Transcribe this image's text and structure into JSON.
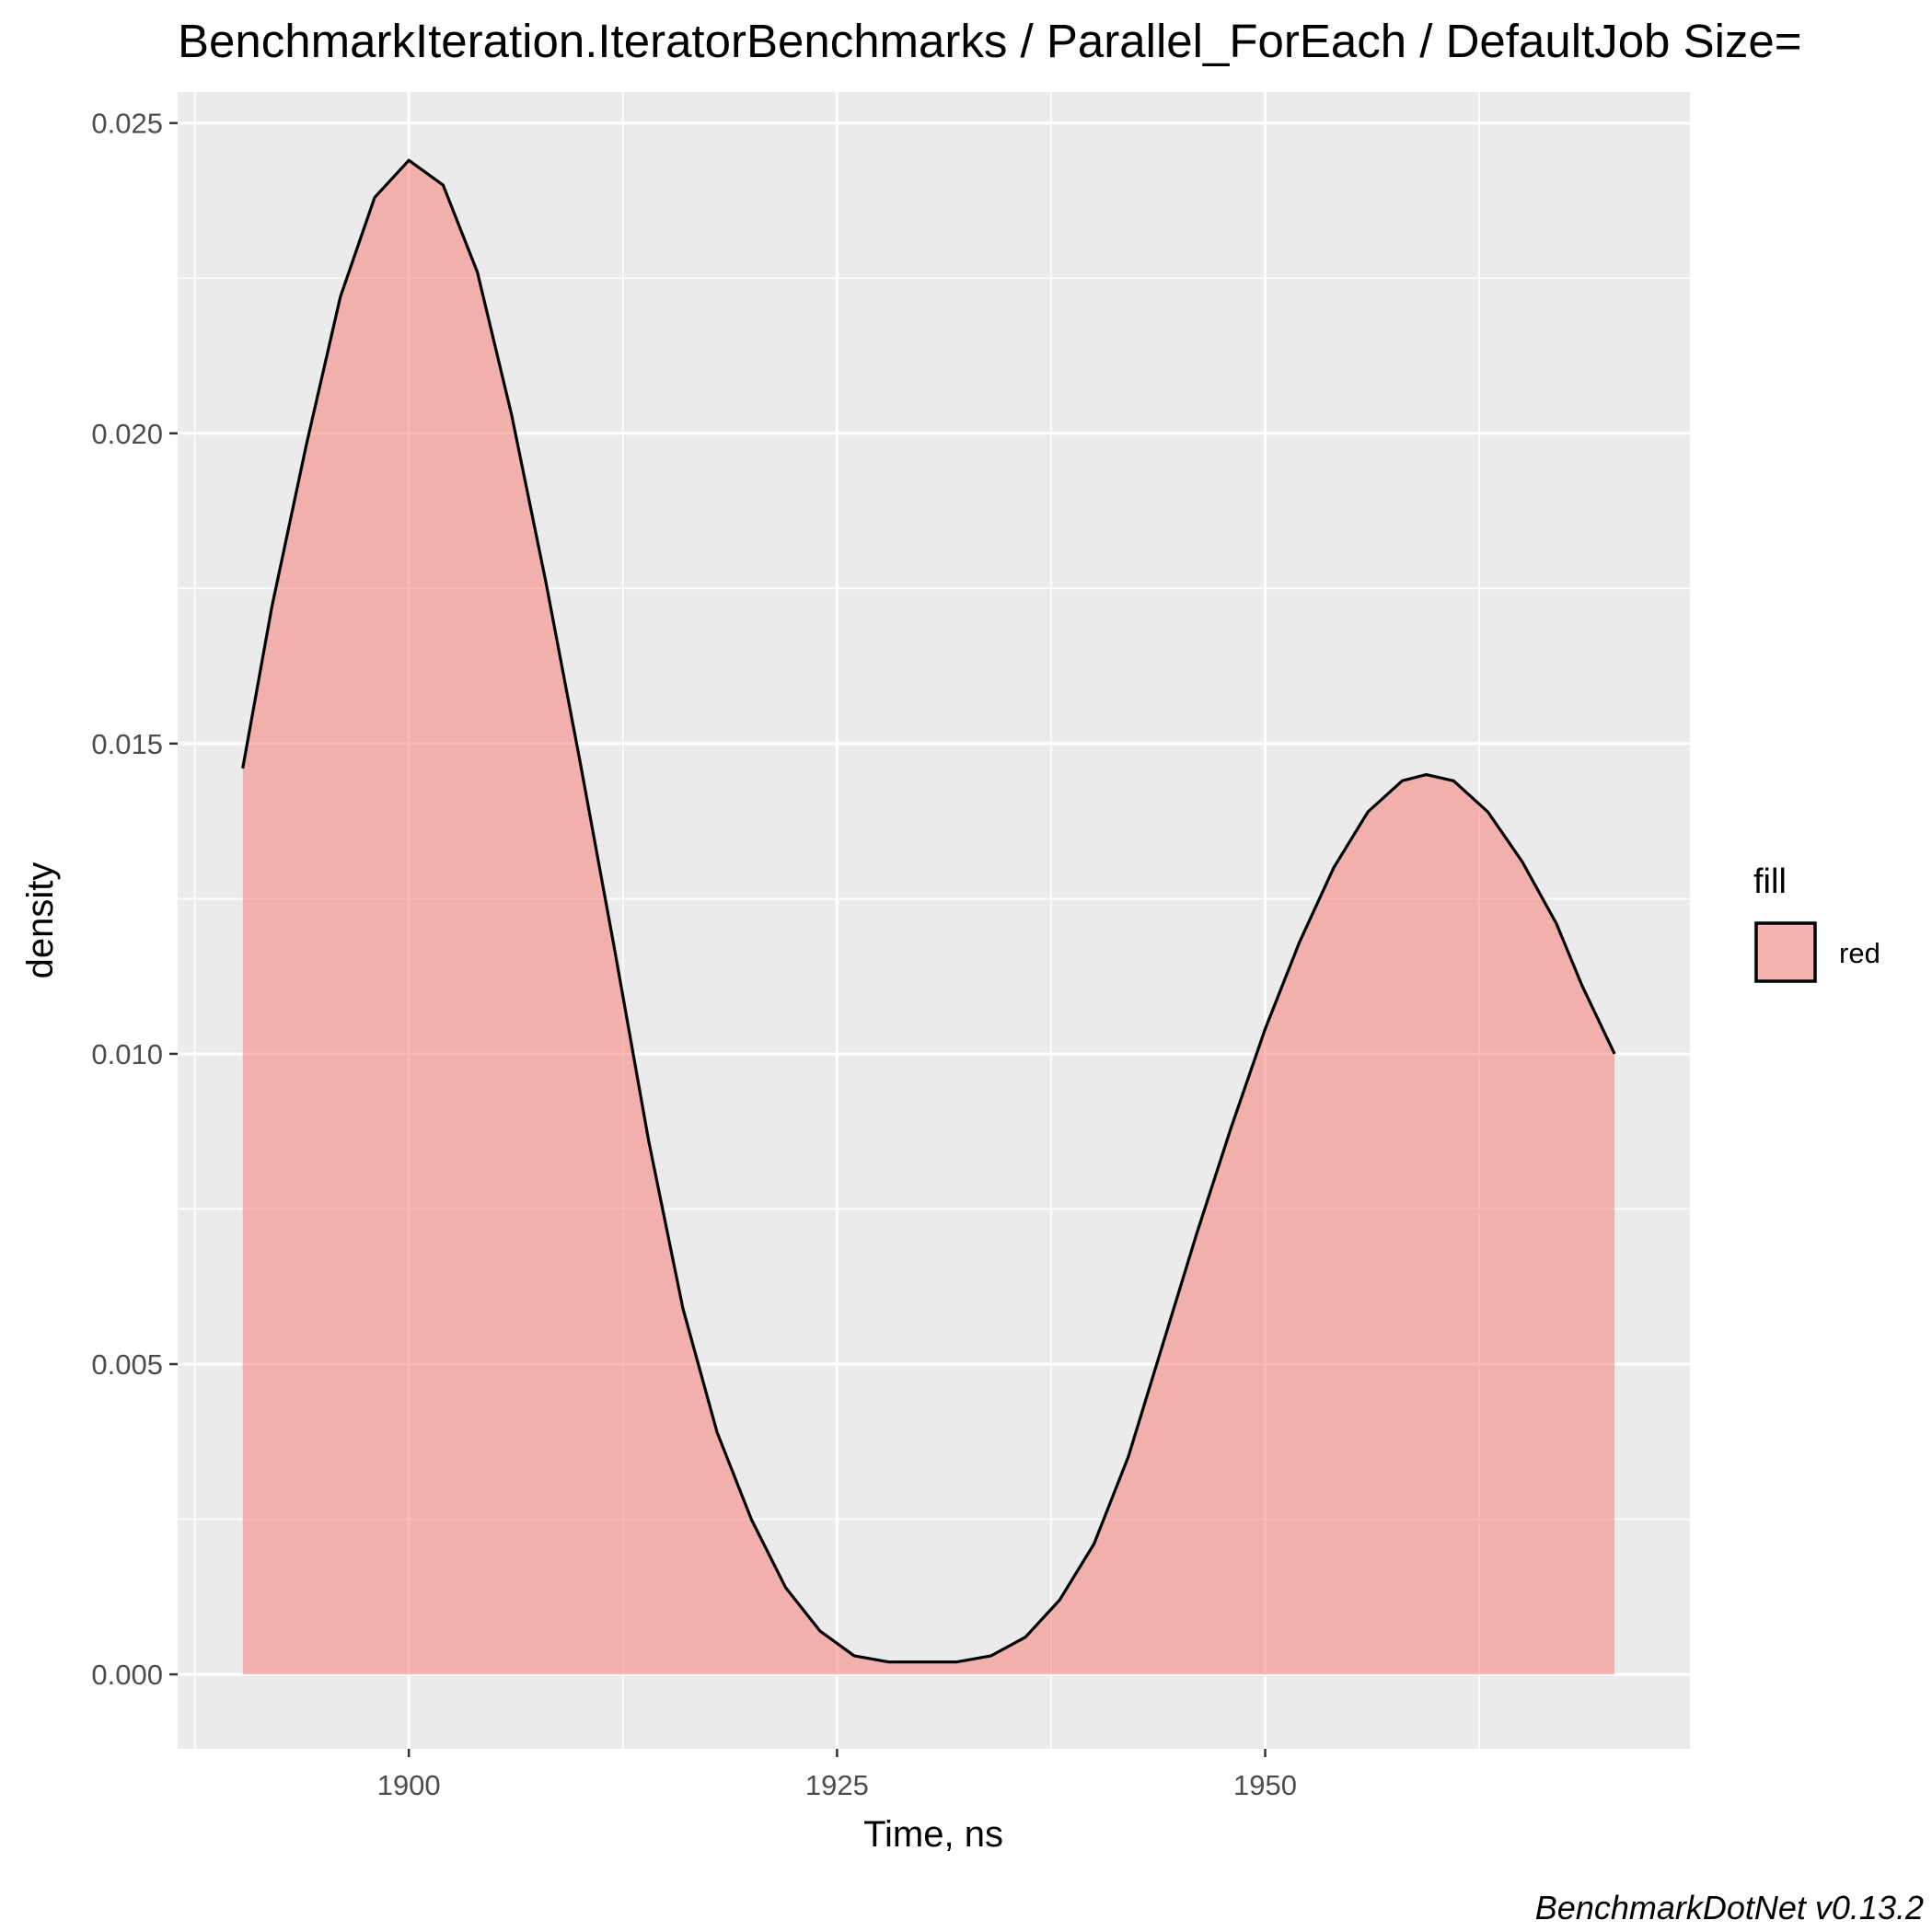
{
  "chart_data": {
    "type": "area",
    "title": "BenchmarkIteration.IteratorBenchmarks / Parallel_ForEach / DefaultJob Size=",
    "xlabel": "Time, ns",
    "ylabel": "density",
    "caption": "BenchmarkDotNet v0.13.2",
    "xlim": [
      1886.5,
      1974.8
    ],
    "ylim": [
      -0.0012,
      0.0255
    ],
    "x_ticks": [
      1900,
      1925,
      1950
    ],
    "x_tick_labels": [
      "1900",
      "1925",
      "1950"
    ],
    "y_ticks": [
      0,
      0.005,
      0.01,
      0.015,
      0.02,
      0.025
    ],
    "y_tick_labels": [
      "0.000",
      "0.005",
      "0.010",
      "0.015",
      "0.020",
      "0.025"
    ],
    "grid": true,
    "legend": {
      "title": "fill",
      "position": "right",
      "entries": [
        {
          "label": "red",
          "color": "#F8766D"
        }
      ]
    },
    "series": [
      {
        "name": "red",
        "fill_color": "#F8766D",
        "fill_opacity": 0.5,
        "line_color": "#000000",
        "x": [
          1890.3,
          1892,
          1894,
          1896,
          1898,
          1900,
          1902,
          1904,
          1906,
          1908,
          1910,
          1912,
          1914,
          1916,
          1918,
          1920,
          1922,
          1924,
          1926,
          1928,
          1930,
          1931,
          1932,
          1934,
          1936,
          1938,
          1940,
          1942,
          1944,
          1946,
          1948,
          1950,
          1952,
          1954,
          1956,
          1958,
          1959.4,
          1961,
          1963,
          1965,
          1967,
          1968.5,
          1970.4
        ],
        "y": [
          0.0146,
          0.0172,
          0.0198,
          0.0222,
          0.0238,
          0.0244,
          0.024,
          0.0226,
          0.0203,
          0.0176,
          0.0147,
          0.0117,
          0.0086,
          0.0059,
          0.0039,
          0.0025,
          0.0014,
          0.0007,
          0.0003,
          0.0002,
          0.0002,
          0.0002,
          0.0002,
          0.0003,
          0.0006,
          0.0012,
          0.0021,
          0.0035,
          0.0053,
          0.0071,
          0.0088,
          0.0104,
          0.0118,
          0.013,
          0.0139,
          0.0144,
          0.0145,
          0.0144,
          0.0139,
          0.0131,
          0.0121,
          0.0111,
          0.01
        ]
      }
    ]
  }
}
